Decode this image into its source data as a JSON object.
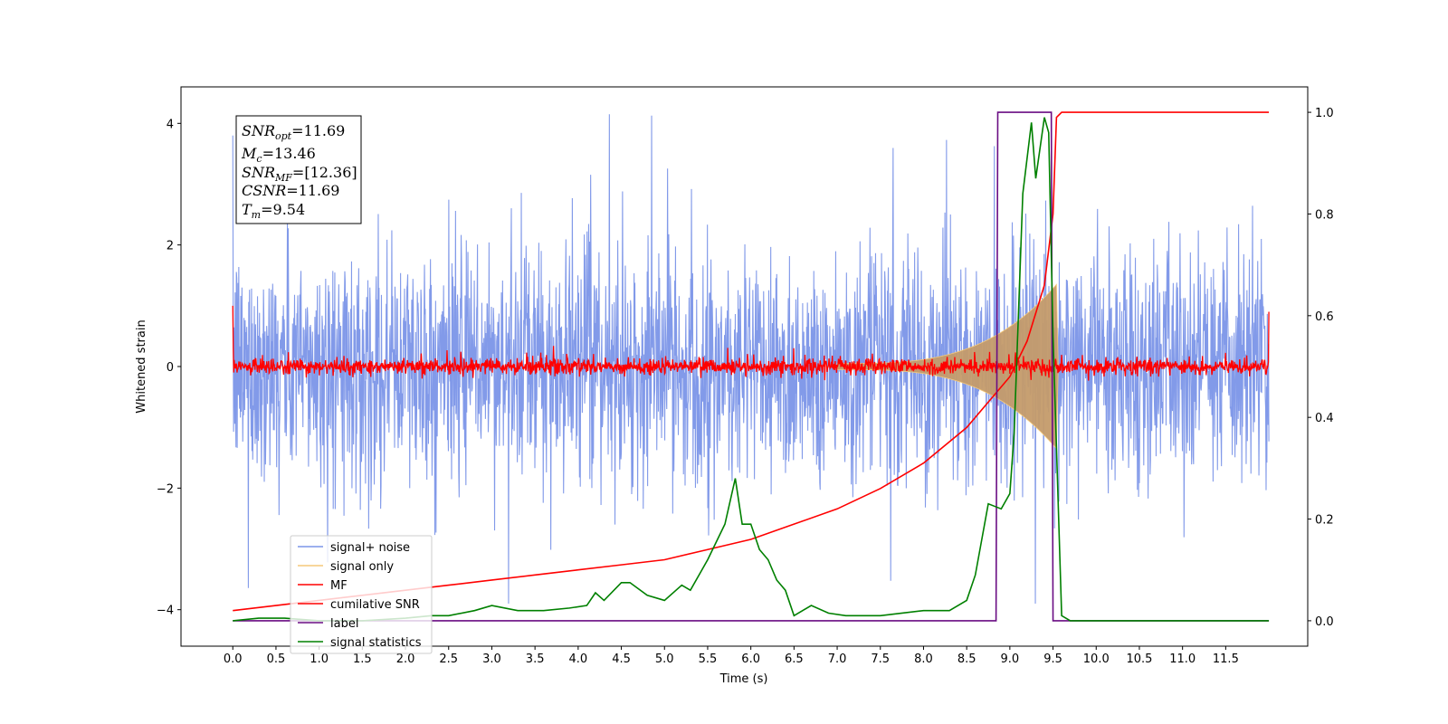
{
  "chart_data": {
    "type": "line",
    "xlabel": "Time (s)",
    "ylabel": "Whitened strain",
    "xlim": [
      -0.6,
      12.45
    ],
    "ylim": [
      -4.6,
      4.6
    ],
    "y2lim": [
      -0.05,
      1.05
    ],
    "xticks": [
      "0.0",
      "0.5",
      "1.0",
      "1.5",
      "2.0",
      "2.5",
      "3.0",
      "3.5",
      "4.0",
      "4.5",
      "5.0",
      "5.5",
      "6.0",
      "6.5",
      "7.0",
      "7.5",
      "8.0",
      "8.5",
      "9.0",
      "9.5",
      "10.0",
      "10.5",
      "11.0",
      "11.5"
    ],
    "yticks": [
      "4",
      "2",
      "0",
      "−2",
      "−4"
    ],
    "y2ticks": [
      "1.0",
      "0.8",
      "0.6",
      "0.4",
      "0.2",
      "0.0"
    ],
    "legend": {
      "placement": "lower-left",
      "entries": [
        {
          "name": "signal+ noise",
          "color": "#7b95e8"
        },
        {
          "name": "signal only",
          "color": "#f5c97a"
        },
        {
          "name": "MF",
          "color": "#ff0000"
        },
        {
          "name": "cumilative SNR",
          "color": "#ff0000"
        },
        {
          "name": "label",
          "color": "#6a0d83"
        },
        {
          "name": "signal statistics",
          "color": "#008000"
        }
      ]
    },
    "annotation": [
      {
        "base": "SNR",
        "sub": "opt",
        "value": "=11.69"
      },
      {
        "base": "M",
        "sub": "c",
        "value": "=13.46"
      },
      {
        "base": "SNR",
        "sub": "MF",
        "value": "=[12.36]"
      },
      {
        "base": "CSNR",
        "sub": "",
        "value": "=11.69"
      },
      {
        "base": "T",
        "sub": "m",
        "value": "=9.54"
      }
    ],
    "series": [
      {
        "name": "signal+ noise",
        "axis": "left",
        "color": "#7b95e8",
        "description_stats": {
          "t_start": 0.0,
          "t_end": 12.0,
          "envelope_typical": 2.3,
          "spike_max": 4.15,
          "spike_min": -3.9
        }
      },
      {
        "name": "signal only",
        "axis": "left",
        "color": "#f5c97a",
        "chirp": {
          "t_start": 7.0,
          "t_merger": 9.54,
          "peak_amplitude": 1.3
        }
      },
      {
        "name": "MF",
        "axis": "left",
        "color": "#ff0000",
        "baseline": 0.0,
        "noise_amplitude": 0.12,
        "endpoints": {
          "start": 1.0,
          "end": 0.9
        }
      },
      {
        "name": "cumilative SNR",
        "axis": "right",
        "color": "#ff0000",
        "x": [
          0.0,
          0.5,
          1.0,
          1.5,
          2.0,
          2.5,
          3.0,
          3.5,
          4.0,
          4.5,
          5.0,
          5.5,
          6.0,
          6.5,
          7.0,
          7.5,
          8.0,
          8.5,
          9.0,
          9.2,
          9.4,
          9.5,
          9.54,
          9.6,
          10.0,
          11.0,
          12.0
        ],
        "y": [
          0.02,
          0.03,
          0.04,
          0.05,
          0.06,
          0.07,
          0.08,
          0.09,
          0.1,
          0.11,
          0.12,
          0.14,
          0.16,
          0.19,
          0.22,
          0.26,
          0.31,
          0.38,
          0.48,
          0.55,
          0.66,
          0.8,
          0.99,
          1.0,
          1.0,
          1.0,
          1.0
        ]
      },
      {
        "name": "label",
        "axis": "right",
        "color": "#6a0d83",
        "x": [
          0.0,
          8.84,
          8.86,
          9.48,
          9.5,
          12.0
        ],
        "y": [
          0.0,
          0.0,
          1.0,
          1.0,
          0.0,
          0.0
        ]
      },
      {
        "name": "signal statistics",
        "axis": "right",
        "color": "#008000",
        "x": [
          0.0,
          0.3,
          0.6,
          1.0,
          1.5,
          2.0,
          2.3,
          2.5,
          2.8,
          3.0,
          3.3,
          3.6,
          3.9,
          4.1,
          4.2,
          4.3,
          4.5,
          4.6,
          4.8,
          5.0,
          5.2,
          5.3,
          5.4,
          5.5,
          5.7,
          5.82,
          5.9,
          6.0,
          6.1,
          6.2,
          6.3,
          6.4,
          6.5,
          6.7,
          6.9,
          7.1,
          7.5,
          8.0,
          8.3,
          8.5,
          8.6,
          8.75,
          8.9,
          9.0,
          9.05,
          9.15,
          9.25,
          9.3,
          9.4,
          9.45,
          9.5,
          9.6,
          9.7,
          10.0,
          11.0,
          12.0
        ],
        "y": [
          0.0,
          0.005,
          0.005,
          0.0,
          0.0,
          0.005,
          0.01,
          0.01,
          0.02,
          0.03,
          0.02,
          0.02,
          0.025,
          0.03,
          0.055,
          0.04,
          0.075,
          0.075,
          0.05,
          0.04,
          0.07,
          0.06,
          0.09,
          0.12,
          0.19,
          0.28,
          0.19,
          0.19,
          0.14,
          0.12,
          0.08,
          0.06,
          0.01,
          0.03,
          0.015,
          0.01,
          0.01,
          0.02,
          0.02,
          0.04,
          0.09,
          0.23,
          0.22,
          0.25,
          0.37,
          0.84,
          0.98,
          0.87,
          0.99,
          0.96,
          0.56,
          0.01,
          0.0,
          0.0,
          0.0,
          0.0
        ]
      }
    ]
  }
}
